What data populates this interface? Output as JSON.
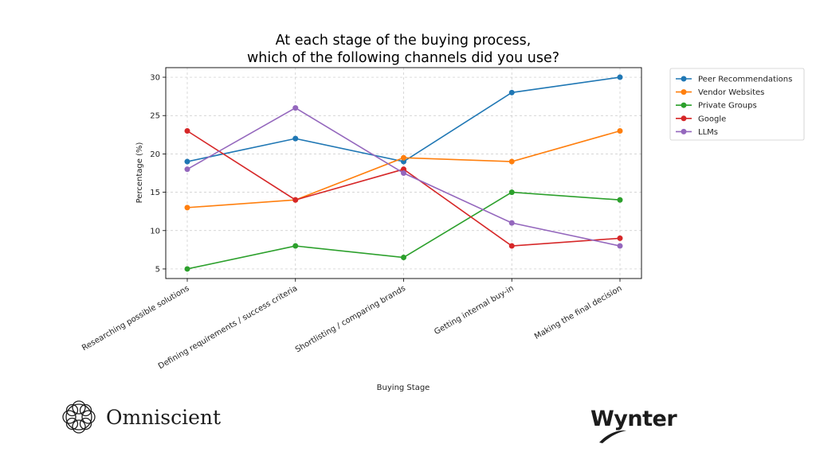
{
  "chart_data": {
    "type": "line",
    "title": [
      "At each stage of the buying process,",
      "which of the following channels did you use?"
    ],
    "xlabel": "Buying Stage",
    "ylabel": "Percentage (%)",
    "categories": [
      "Researching possible solutions",
      "Defining requirements / success criteria",
      "Shortlisting / comparing brands",
      "Getting internal buy-in",
      "Making the final decision"
    ],
    "ylim": [
      3.75,
      31.25
    ],
    "yticks": [
      5,
      10,
      15,
      20,
      25,
      30
    ],
    "grid": true,
    "legend_position": "outside-top-right",
    "series": [
      {
        "name": "Peer Recommendations",
        "color": "#1f77b4",
        "values": [
          19,
          22,
          19,
          28,
          30
        ]
      },
      {
        "name": "Vendor Websites",
        "color": "#ff7f0e",
        "values": [
          13,
          14,
          19.5,
          19,
          23
        ]
      },
      {
        "name": "Private Groups",
        "color": "#2ca02c",
        "values": [
          5,
          8,
          6.5,
          15,
          14
        ]
      },
      {
        "name": "Google",
        "color": "#d62728",
        "values": [
          23,
          14,
          18,
          8,
          9
        ]
      },
      {
        "name": "LLMs",
        "color": "#9467bd",
        "values": [
          18,
          26,
          17.5,
          11,
          8
        ]
      }
    ]
  },
  "branding": {
    "left_logo_text": "Omniscient",
    "left_logo_icon": "omniscient-knot-icon",
    "right_logo_text": "Wynter",
    "right_logo_icon": "wynter-swoosh-icon"
  }
}
